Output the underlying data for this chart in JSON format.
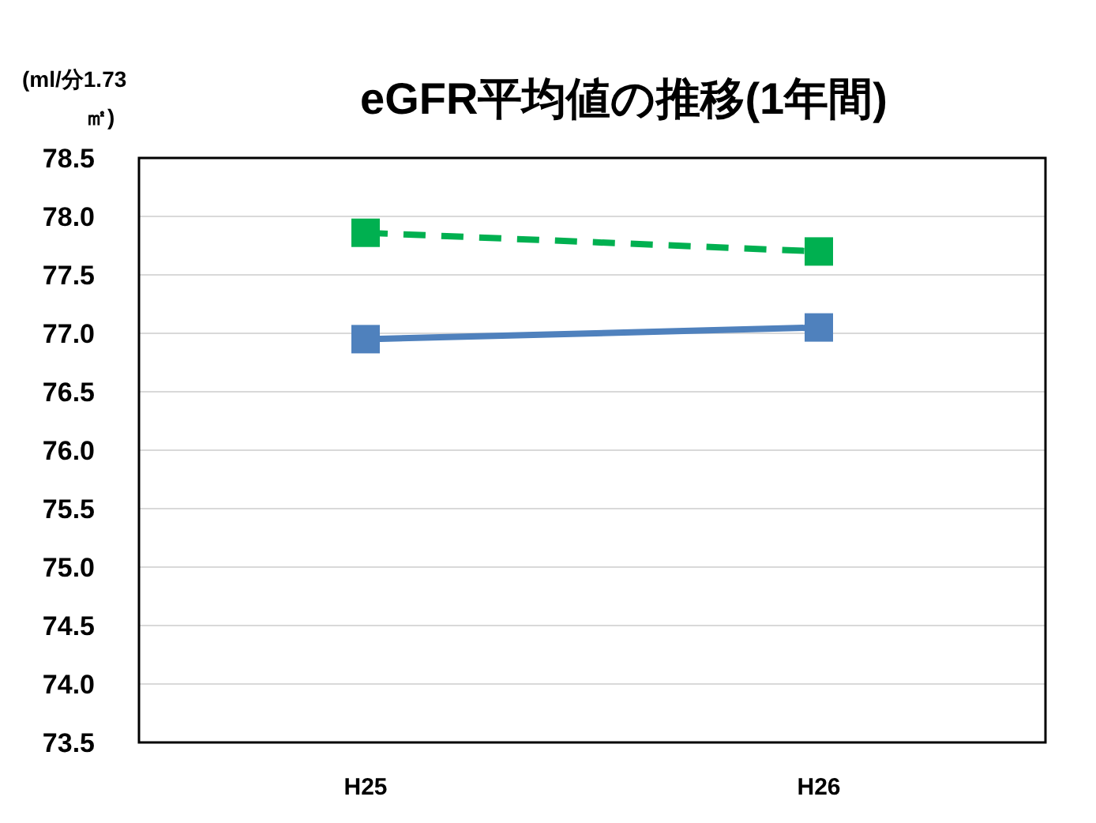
{
  "chart_data": {
    "type": "line",
    "title": "eGFR平均値の推移(1年間)",
    "ylabel": "(ml/分1.73㎡)",
    "categories": [
      "H25",
      "H26"
    ],
    "series": [
      {
        "color": "#00b050",
        "values": [
          77.86,
          77.7
        ],
        "line_style": "dashed"
      },
      {
        "color": "#4f81bd",
        "values": [
          76.95,
          77.05
        ],
        "line_style": "solid"
      }
    ],
    "ylim": [
      73.5,
      78.5
    ],
    "yticks": [
      {
        "value": 73.5,
        "label": "73.5"
      },
      {
        "value": 74,
        "label": "74.0"
      },
      {
        "value": 74.5,
        "label": "74.5"
      },
      {
        "value": 75,
        "label": "75.0"
      },
      {
        "value": 75.5,
        "label": "75.5"
      },
      {
        "value": 76,
        "label": "76.0"
      },
      {
        "value": 76.5,
        "label": "76.5"
      },
      {
        "value": 77,
        "label": "77.0"
      },
      {
        "value": 77.5,
        "label": "77.5"
      },
      {
        "value": 78,
        "label": "78.0"
      },
      {
        "value": 78.5,
        "label": "78.5"
      }
    ],
    "grid": "y",
    "marker": "square"
  }
}
